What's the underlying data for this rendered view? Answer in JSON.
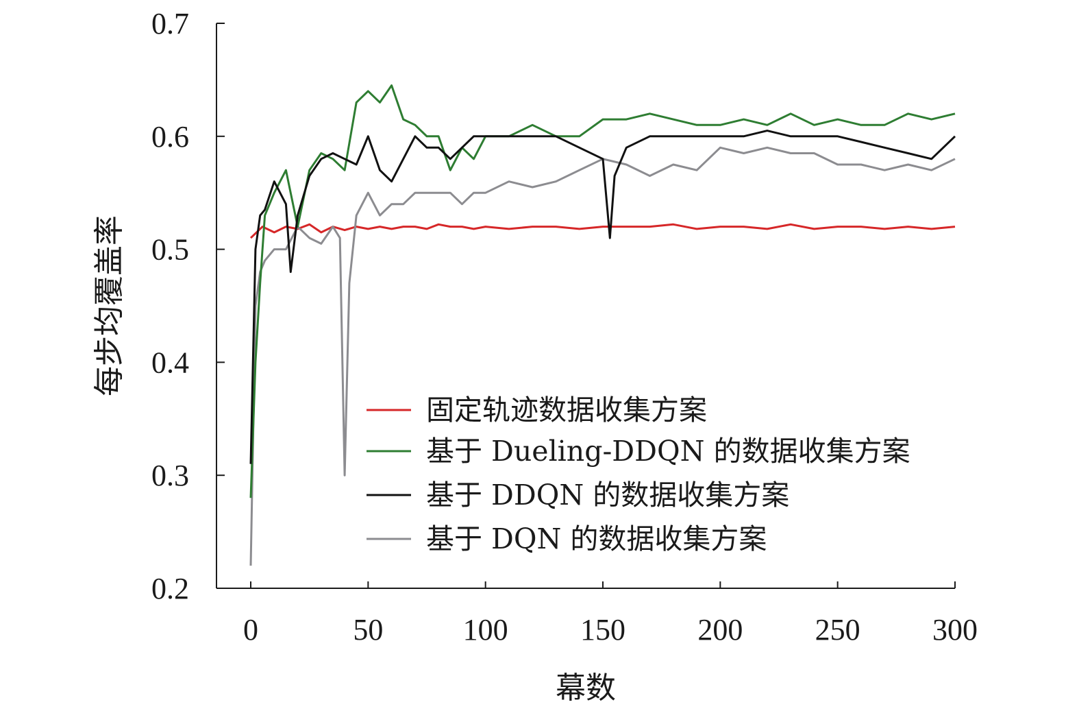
{
  "chart_data": {
    "type": "line",
    "xlabel": "幕数",
    "ylabel": "每步均覆盖率",
    "xlim": [
      0,
      300
    ],
    "ylim": [
      0.2,
      0.7
    ],
    "xticks": [
      0,
      50,
      100,
      150,
      200,
      250,
      300
    ],
    "yticks": [
      0.2,
      0.3,
      0.4,
      0.5,
      0.6,
      0.7
    ],
    "xtick_labels": [
      "0",
      "50",
      "100",
      "150",
      "200",
      "250",
      "300"
    ],
    "ytick_labels": [
      "0.2",
      "0.3",
      "0.4",
      "0.5",
      "0.6",
      "0.7"
    ],
    "grid": false,
    "legend_position": "lower-right",
    "series": [
      {
        "name": "固定轨迹数据收集方案",
        "color": "#d62728",
        "x": [
          0,
          5,
          10,
          15,
          20,
          25,
          30,
          35,
          40,
          45,
          50,
          55,
          60,
          65,
          70,
          75,
          80,
          85,
          90,
          95,
          100,
          110,
          120,
          130,
          140,
          150,
          160,
          170,
          180,
          190,
          200,
          210,
          220,
          230,
          240,
          250,
          260,
          270,
          280,
          290,
          300
        ],
        "y": [
          0.51,
          0.52,
          0.515,
          0.52,
          0.518,
          0.522,
          0.515,
          0.52,
          0.517,
          0.52,
          0.518,
          0.52,
          0.518,
          0.52,
          0.52,
          0.518,
          0.522,
          0.52,
          0.52,
          0.518,
          0.52,
          0.518,
          0.52,
          0.52,
          0.518,
          0.52,
          0.52,
          0.52,
          0.522,
          0.518,
          0.52,
          0.52,
          0.518,
          0.522,
          0.518,
          0.52,
          0.52,
          0.518,
          0.52,
          0.518,
          0.52
        ]
      },
      {
        "name": "基于 Dueling-DDQN 的数据收集方案",
        "color": "#2e7d32",
        "x": [
          0,
          2,
          4,
          6,
          10,
          15,
          20,
          25,
          30,
          35,
          40,
          45,
          50,
          55,
          60,
          65,
          70,
          75,
          80,
          85,
          90,
          95,
          100,
          110,
          120,
          130,
          140,
          150,
          160,
          170,
          180,
          190,
          200,
          210,
          220,
          230,
          240,
          250,
          260,
          270,
          280,
          290,
          300
        ],
        "y": [
          0.28,
          0.4,
          0.47,
          0.53,
          0.55,
          0.57,
          0.52,
          0.57,
          0.585,
          0.58,
          0.57,
          0.63,
          0.64,
          0.63,
          0.645,
          0.615,
          0.61,
          0.6,
          0.6,
          0.57,
          0.59,
          0.58,
          0.6,
          0.6,
          0.61,
          0.6,
          0.6,
          0.615,
          0.615,
          0.62,
          0.615,
          0.61,
          0.61,
          0.615,
          0.61,
          0.62,
          0.61,
          0.615,
          0.61,
          0.61,
          0.62,
          0.615,
          0.62
        ]
      },
      {
        "name": "基于 DDQN 的数据收集方案",
        "color": "#111111",
        "x": [
          0,
          2,
          4,
          6,
          10,
          15,
          17,
          20,
          25,
          30,
          35,
          40,
          45,
          50,
          55,
          60,
          65,
          70,
          75,
          80,
          85,
          90,
          95,
          100,
          110,
          120,
          130,
          140,
          150,
          153,
          155,
          160,
          170,
          180,
          190,
          200,
          210,
          220,
          230,
          240,
          250,
          260,
          270,
          280,
          290,
          300
        ],
        "y": [
          0.31,
          0.5,
          0.53,
          0.535,
          0.56,
          0.54,
          0.48,
          0.53,
          0.565,
          0.58,
          0.585,
          0.58,
          0.575,
          0.6,
          0.57,
          0.56,
          0.58,
          0.6,
          0.59,
          0.59,
          0.58,
          0.59,
          0.6,
          0.6,
          0.6,
          0.6,
          0.6,
          0.59,
          0.58,
          0.51,
          0.565,
          0.59,
          0.6,
          0.6,
          0.6,
          0.6,
          0.6,
          0.605,
          0.6,
          0.6,
          0.6,
          0.595,
          0.59,
          0.585,
          0.58,
          0.6
        ]
      },
      {
        "name": "基于 DQN 的数据收集方案",
        "color": "#8c8c90",
        "x": [
          0,
          2,
          4,
          6,
          10,
          15,
          20,
          25,
          30,
          35,
          38,
          40,
          42,
          45,
          50,
          55,
          60,
          65,
          70,
          75,
          80,
          85,
          90,
          95,
          100,
          110,
          120,
          130,
          140,
          150,
          160,
          170,
          180,
          190,
          200,
          210,
          220,
          230,
          240,
          250,
          260,
          270,
          280,
          290,
          300
        ],
        "y": [
          0.22,
          0.45,
          0.48,
          0.49,
          0.5,
          0.5,
          0.52,
          0.51,
          0.505,
          0.52,
          0.51,
          0.3,
          0.47,
          0.53,
          0.55,
          0.53,
          0.54,
          0.54,
          0.55,
          0.55,
          0.55,
          0.55,
          0.54,
          0.55,
          0.55,
          0.56,
          0.555,
          0.56,
          0.57,
          0.58,
          0.575,
          0.565,
          0.575,
          0.57,
          0.59,
          0.585,
          0.59,
          0.585,
          0.585,
          0.575,
          0.575,
          0.57,
          0.575,
          0.57,
          0.58
        ]
      }
    ]
  }
}
